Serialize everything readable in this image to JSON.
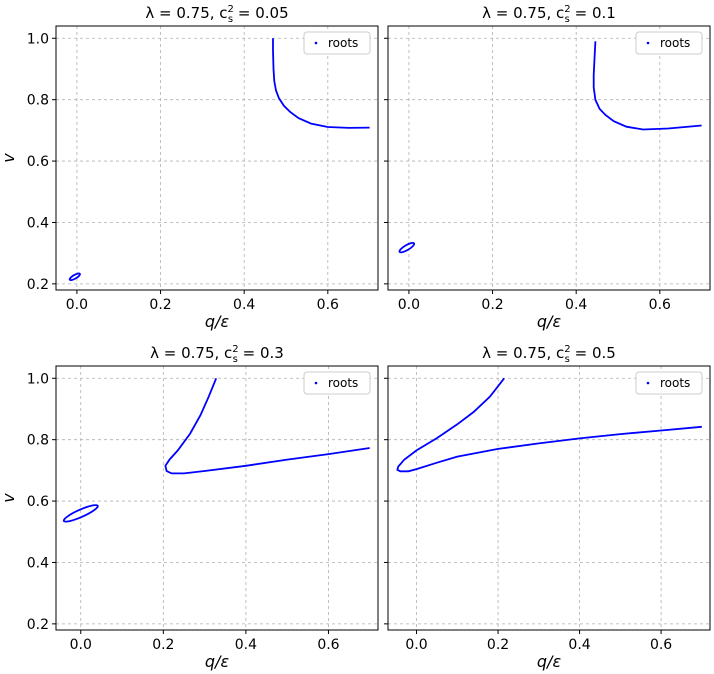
{
  "chart_data": [
    {
      "type": "scatter",
      "title": "λ = 0.75, c_s² = 0.05",
      "title_main": "λ = 0.75, c",
      "title_sub": "s",
      "title_sup": "2",
      "title_end": " = 0.05",
      "xlabel": "q/ε",
      "ylabel": "v",
      "xlim": [
        -0.05,
        0.72
      ],
      "ylim": [
        0.18,
        1.04
      ],
      "xticks": [
        "0.0",
        "0.2",
        "0.4",
        "0.6"
      ],
      "yticks": [
        "0.2",
        "0.4",
        "0.6",
        "0.8",
        "1.0"
      ],
      "legend": "roots",
      "grid": true,
      "color": "#0000ff",
      "series": [
        {
          "kind": "ellipse",
          "cx": -0.005,
          "cy": 0.223,
          "rx": 0.014,
          "ry": 0.006,
          "angle": 30
        },
        {
          "kind": "curve",
          "points": [
            [
              0.469,
              1.0
            ],
            [
              0.469,
              0.96
            ],
            [
              0.47,
              0.9
            ],
            [
              0.472,
              0.86
            ],
            [
              0.476,
              0.83
            ],
            [
              0.483,
              0.805
            ],
            [
              0.495,
              0.78
            ],
            [
              0.51,
              0.76
            ],
            [
              0.53,
              0.74
            ],
            [
              0.56,
              0.722
            ],
            [
              0.6,
              0.711
            ],
            [
              0.65,
              0.708
            ],
            [
              0.7,
              0.709
            ]
          ]
        }
      ]
    },
    {
      "type": "scatter",
      "title": "λ = 0.75, c_s² = 0.1",
      "title_main": "λ = 0.75, c",
      "title_sub": "s",
      "title_sup": "2",
      "title_end": " = 0.1",
      "xlabel": "q/ε",
      "ylabel": "",
      "xlim": [
        -0.05,
        0.72
      ],
      "ylim": [
        0.18,
        1.04
      ],
      "xticks": [
        "0.0",
        "0.2",
        "0.4",
        "0.6"
      ],
      "yticks": [],
      "legend": "roots",
      "grid": true,
      "color": "#0000ff",
      "series": [
        {
          "kind": "ellipse",
          "cx": -0.005,
          "cy": 0.318,
          "rx": 0.02,
          "ry": 0.008,
          "angle": 30
        },
        {
          "kind": "curve",
          "points": [
            [
              0.446,
              0.99
            ],
            [
              0.444,
              0.94
            ],
            [
              0.442,
              0.88
            ],
            [
              0.442,
              0.84
            ],
            [
              0.446,
              0.8
            ],
            [
              0.456,
              0.77
            ],
            [
              0.47,
              0.75
            ],
            [
              0.49,
              0.73
            ],
            [
              0.52,
              0.712
            ],
            [
              0.56,
              0.703
            ],
            [
              0.62,
              0.706
            ],
            [
              0.7,
              0.716
            ]
          ]
        }
      ]
    },
    {
      "type": "line",
      "title": "λ = 0.75, c_s² = 0.3",
      "title_main": "λ = 0.75, c",
      "title_sub": "s",
      "title_sup": "2",
      "title_end": " = 0.3",
      "xlabel": "q/ε",
      "ylabel": "v",
      "xlim": [
        -0.06,
        0.72
      ],
      "ylim": [
        0.18,
        1.04
      ],
      "xticks": [
        "0.0",
        "0.2",
        "0.4",
        "0.6"
      ],
      "yticks": [
        "0.2",
        "0.4",
        "0.6",
        "0.8",
        "1.0"
      ],
      "legend": "roots",
      "grid": true,
      "color": "#0000ff",
      "series": [
        {
          "kind": "ellipse",
          "cx": 0.0,
          "cy": 0.56,
          "rx": 0.045,
          "ry": 0.012,
          "angle": 24
        },
        {
          "kind": "curve",
          "points": [
            [
              0.328,
              1.0
            ],
            [
              0.31,
              0.94
            ],
            [
              0.29,
              0.88
            ],
            [
              0.265,
              0.82
            ],
            [
              0.235,
              0.765
            ],
            [
              0.215,
              0.735
            ],
            [
              0.205,
              0.715
            ],
            [
              0.208,
              0.698
            ],
            [
              0.22,
              0.69
            ],
            [
              0.25,
              0.69
            ],
            [
              0.3,
              0.698
            ],
            [
              0.4,
              0.715
            ],
            [
              0.5,
              0.735
            ],
            [
              0.6,
              0.753
            ],
            [
              0.7,
              0.773
            ]
          ]
        }
      ]
    },
    {
      "type": "line",
      "title": "λ = 0.75, c_s² = 0.5",
      "title_main": "λ = 0.75, c",
      "title_sub": "s",
      "title_sup": "2",
      "title_end": " = 0.5",
      "xlabel": "q/ε",
      "ylabel": "",
      "xlim": [
        -0.07,
        0.72
      ],
      "ylim": [
        0.18,
        1.04
      ],
      "xticks": [
        "0.0",
        "0.2",
        "0.4",
        "0.6"
      ],
      "yticks": [],
      "legend": "roots",
      "grid": true,
      "color": "#0000ff",
      "series": [
        {
          "kind": "curve",
          "points": [
            [
              0.215,
              1.0
            ],
            [
              0.18,
              0.94
            ],
            [
              0.14,
              0.89
            ],
            [
              0.1,
              0.85
            ],
            [
              0.05,
              0.805
            ],
            [
              0.0,
              0.765
            ],
            [
              -0.03,
              0.735
            ],
            [
              -0.045,
              0.712
            ],
            [
              -0.047,
              0.702
            ],
            [
              -0.04,
              0.697
            ],
            [
              -0.02,
              0.697
            ],
            [
              0.0,
              0.704
            ],
            [
              0.05,
              0.725
            ],
            [
              0.1,
              0.745
            ],
            [
              0.2,
              0.77
            ],
            [
              0.3,
              0.788
            ],
            [
              0.4,
              0.804
            ],
            [
              0.5,
              0.818
            ],
            [
              0.6,
              0.83
            ],
            [
              0.7,
              0.842
            ]
          ]
        }
      ]
    }
  ]
}
